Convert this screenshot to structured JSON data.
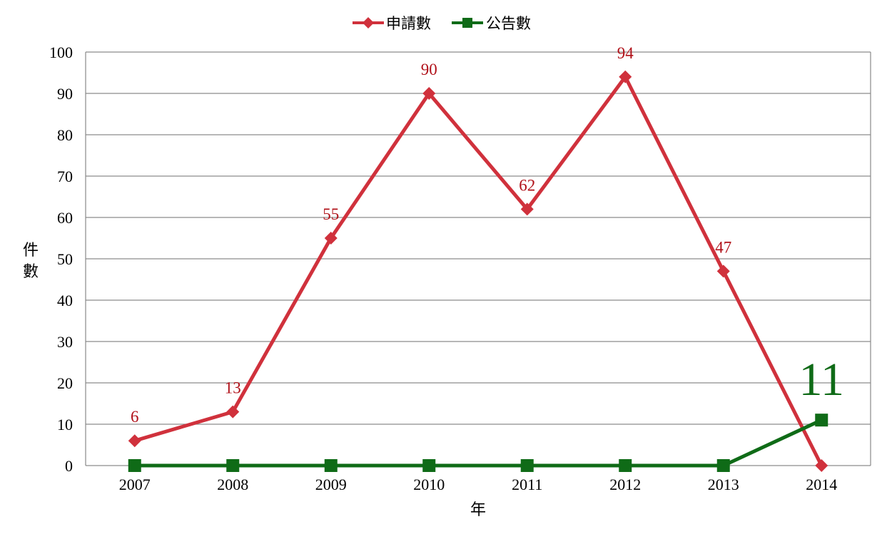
{
  "chart_data": {
    "type": "line",
    "x": [
      "2007",
      "2008",
      "2009",
      "2010",
      "2011",
      "2012",
      "2013",
      "2014"
    ],
    "ylim": [
      0,
      100
    ],
    "yticks": [
      "0",
      "10",
      "20",
      "30",
      "40",
      "50",
      "60",
      "70",
      "80",
      "90",
      "100"
    ],
    "xlabel": "年",
    "ylabel": "件數",
    "grid": true,
    "legend_position": "top",
    "series": [
      {
        "name": "申請數",
        "color": "#D0313C",
        "marker": "diamond",
        "values": [
          6,
          13,
          55,
          90,
          62,
          94,
          47,
          0
        ],
        "data_labels": [
          "6",
          "13",
          "55",
          "90",
          "62",
          "94",
          "47",
          ""
        ]
      },
      {
        "name": "公告數",
        "color": "#0F6B17",
        "marker": "square",
        "values": [
          0,
          0,
          0,
          0,
          0,
          0,
          0,
          11
        ],
        "data_labels": [
          "",
          "",
          "",
          "",
          "",
          "",
          "",
          "11"
        ]
      }
    ]
  }
}
